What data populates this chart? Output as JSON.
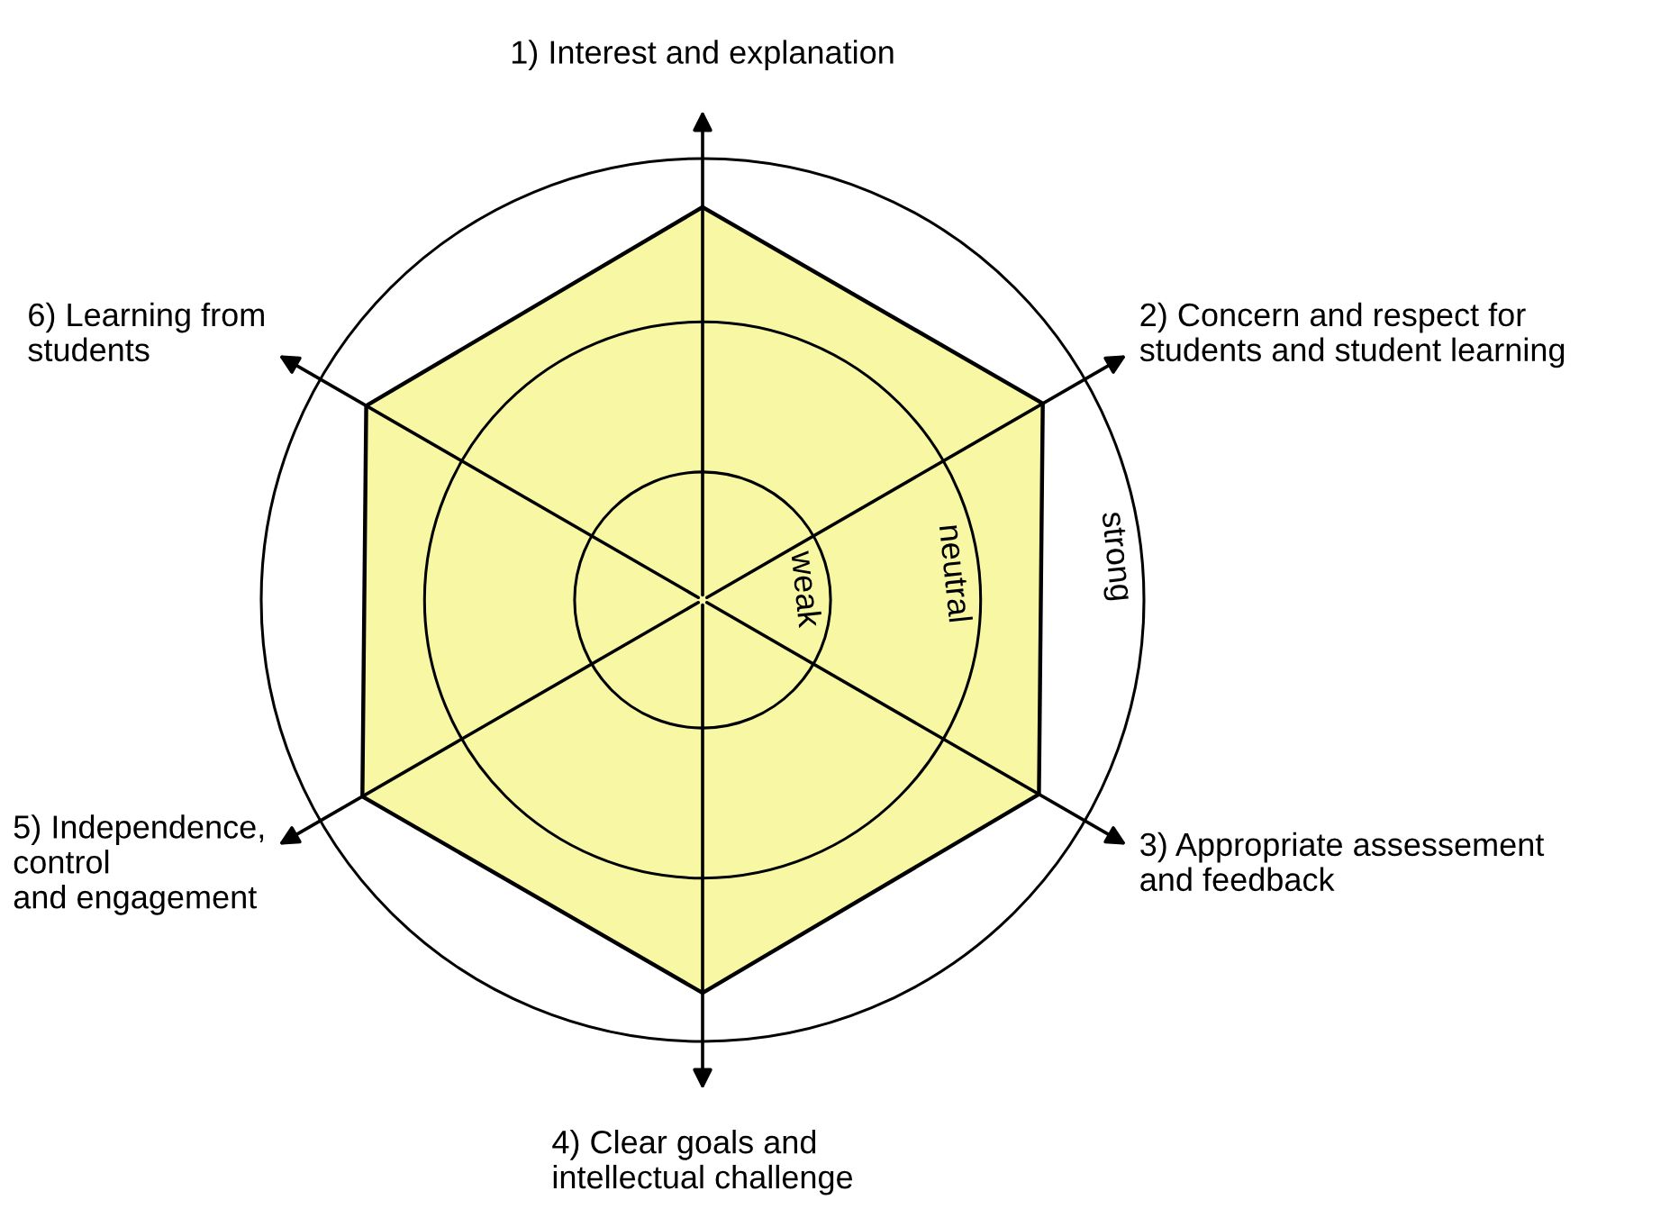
{
  "chart_data": {
    "type": "radar",
    "ylim": [
      0,
      1.0
    ],
    "categories": [
      "1) Interest and explanation",
      "2) Concern and respect for\nstudents and student learning",
      "3) Appropriate assessement\nand feedback",
      "4) Clear goals and\nintellectual challenge",
      "5) Independence,\ncontrol\nand engagement",
      "6) Learning from\nstudents"
    ],
    "series": [
      {
        "color": "#f8f8a4",
        "values": [
          0.89,
          0.89,
          0.88,
          0.89,
          0.89,
          0.88
        ]
      }
    ],
    "yticks": [
      {
        "value": 0.29,
        "label": "weak"
      },
      {
        "value": 0.63,
        "label": "neutral"
      },
      {
        "value": 1.0,
        "label": "strong"
      }
    ],
    "grid": true,
    "marker": "none",
    "line_style": "solid",
    "legend": false
  }
}
